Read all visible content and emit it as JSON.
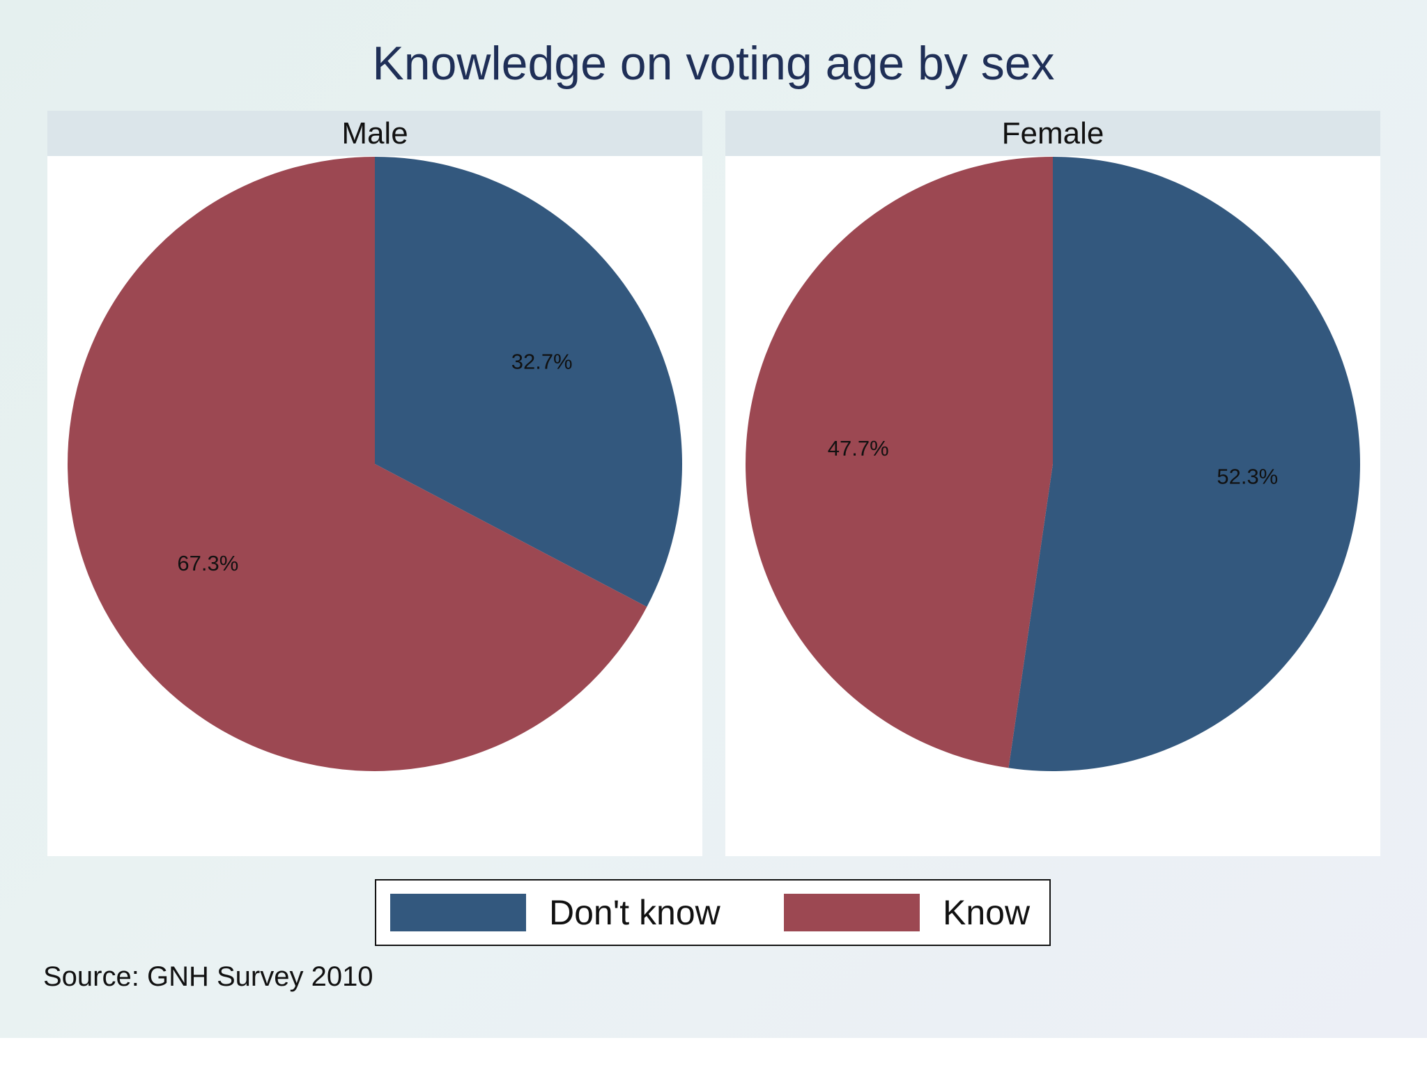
{
  "chart_data": {
    "type": "pie",
    "title": "Knowledge on voting age by sex",
    "legend": {
      "position": "bottom",
      "entries": [
        {
          "name": "Don't know",
          "color": "#33587e"
        },
        {
          "name": "Know",
          "color": "#9c4852"
        }
      ]
    },
    "panels": [
      {
        "name": "Male",
        "slices": [
          {
            "category": "Don't know",
            "value": 32.7,
            "label": "32.7%",
            "color": "#33587e"
          },
          {
            "category": "Know",
            "value": 67.3,
            "label": "67.3%",
            "color": "#9c4852"
          }
        ]
      },
      {
        "name": "Female",
        "slices": [
          {
            "category": "Don't know",
            "value": 52.3,
            "label": "52.3%",
            "color": "#33587e"
          },
          {
            "category": "Know",
            "value": 47.7,
            "label": "47.7%",
            "color": "#9c4852"
          }
        ]
      }
    ],
    "note": "Source: GNH Survey 2010"
  }
}
